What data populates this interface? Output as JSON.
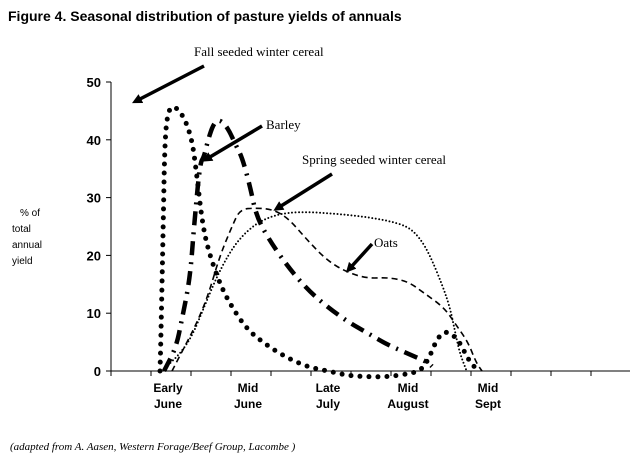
{
  "figure": {
    "title": "Figure 4.  Seasonal distribution of pasture yields of annuals",
    "source": "(adapted from A. Aasen, Western Forage/Beef Group, Lacombe )"
  },
  "chart_data": {
    "type": "line",
    "title": "Figure 4.  Seasonal distribution of pasture yields of annuals",
    "ylabel_lines": [
      "% of",
      "total",
      "annual",
      "yield"
    ],
    "ylim": [
      0,
      50
    ],
    "y_ticks": [
      0,
      10,
      20,
      30,
      40,
      50
    ],
    "x_ticks": [
      {
        "lines": [
          "Early",
          "June"
        ]
      },
      {
        "lines": [
          "Mid",
          "June"
        ]
      },
      {
        "lines": [
          "Late",
          "July"
        ]
      },
      {
        "lines": [
          "Mid",
          "August"
        ]
      },
      {
        "lines": [
          "Mid",
          "Sept"
        ]
      }
    ],
    "grid": false,
    "series": [
      {
        "name": "Fall seeded winter cereal",
        "style": "dotted-heavy",
        "color": "#000000",
        "points": [
          [
            -0.2,
            0
          ],
          [
            -0.18,
            5
          ],
          [
            -0.12,
            25
          ],
          [
            -0.08,
            40
          ],
          [
            0.0,
            45
          ],
          [
            0.15,
            46
          ],
          [
            0.4,
            44
          ],
          [
            0.6,
            40
          ],
          [
            0.7,
            35
          ],
          [
            0.85,
            26
          ],
          [
            1.0,
            21
          ],
          [
            1.3,
            15
          ],
          [
            1.6,
            11
          ],
          [
            2.0,
            7
          ],
          [
            2.5,
            4.3
          ],
          [
            3.0,
            2.2
          ],
          [
            3.5,
            0.7
          ],
          [
            4.0,
            0
          ],
          [
            4.5,
            -0.8
          ],
          [
            5.0,
            -1
          ],
          [
            5.5,
            -1
          ],
          [
            6.0,
            -0.5
          ],
          [
            6.3,
            0
          ],
          [
            6.5,
            1.8
          ],
          [
            6.75,
            6
          ],
          [
            7.0,
            7
          ],
          [
            7.3,
            5
          ],
          [
            7.5,
            2
          ],
          [
            7.75,
            0
          ]
        ]
      },
      {
        "name": "Barley",
        "style": "dash-dot-heavy",
        "color": "#000000",
        "points": [
          [
            -0.1,
            0
          ],
          [
            0.2,
            4
          ],
          [
            0.35,
            9
          ],
          [
            0.55,
            16
          ],
          [
            0.65,
            25
          ],
          [
            0.8,
            36
          ],
          [
            0.9,
            37
          ],
          [
            1.0,
            40
          ],
          [
            1.15,
            43
          ],
          [
            1.3,
            43.5
          ],
          [
            1.5,
            42
          ],
          [
            1.7,
            39
          ],
          [
            1.85,
            37
          ],
          [
            2.05,
            32
          ],
          [
            2.2,
            27
          ],
          [
            2.5,
            23
          ],
          [
            3.0,
            18
          ],
          [
            3.5,
            14
          ],
          [
            4.0,
            11
          ],
          [
            4.5,
            8.5
          ],
          [
            5.0,
            6.5
          ],
          [
            5.5,
            4.5
          ],
          [
            6.0,
            3
          ],
          [
            6.5,
            1.5
          ],
          [
            6.6,
            0.8
          ]
        ]
      },
      {
        "name": "Spring seeded winter cereal",
        "style": "dotted-fine",
        "color": "#000000",
        "points": [
          [
            0.0,
            1
          ],
          [
            0.3,
            3
          ],
          [
            0.6,
            6
          ],
          [
            0.9,
            11
          ],
          [
            1.2,
            16
          ],
          [
            1.5,
            20
          ],
          [
            1.8,
            23
          ],
          [
            2.2,
            25.5
          ],
          [
            2.6,
            26.8
          ],
          [
            3.0,
            27.4
          ],
          [
            3.5,
            27.5
          ],
          [
            4.0,
            27.3
          ],
          [
            4.5,
            27
          ],
          [
            5.0,
            26.6
          ],
          [
            5.5,
            26
          ],
          [
            6.0,
            25
          ],
          [
            6.3,
            23
          ],
          [
            6.55,
            20
          ],
          [
            6.85,
            15
          ],
          [
            7.05,
            11
          ],
          [
            7.2,
            6
          ],
          [
            7.3,
            3
          ],
          [
            7.45,
            0.3
          ]
        ]
      },
      {
        "name": "Oats",
        "style": "dashed-fine",
        "color": "#000000",
        "points": [
          [
            0.1,
            0
          ],
          [
            0.4,
            4
          ],
          [
            0.7,
            8
          ],
          [
            1.0,
            13
          ],
          [
            1.3,
            20
          ],
          [
            1.6,
            25
          ],
          [
            1.8,
            28
          ],
          [
            2.2,
            28.2
          ],
          [
            2.6,
            28
          ],
          [
            3.0,
            26.5
          ],
          [
            3.5,
            22.5
          ],
          [
            4.0,
            19
          ],
          [
            4.5,
            17
          ],
          [
            5.0,
            16
          ],
          [
            5.5,
            16.2
          ],
          [
            6.0,
            15.5
          ],
          [
            6.4,
            13.5
          ],
          [
            6.9,
            11
          ],
          [
            7.2,
            8
          ],
          [
            7.5,
            5
          ],
          [
            7.7,
            1.5
          ],
          [
            7.85,
            0
          ]
        ]
      }
    ],
    "annotations": [
      {
        "text": "Fall seeded winter cereal",
        "series": "Fall seeded winter cereal"
      },
      {
        "text": "Barley",
        "series": "Barley"
      },
      {
        "text": "Spring seeded winter cereal",
        "series": "Spring seeded winter cereal"
      },
      {
        "text": "Oats",
        "series": "Oats"
      }
    ]
  }
}
